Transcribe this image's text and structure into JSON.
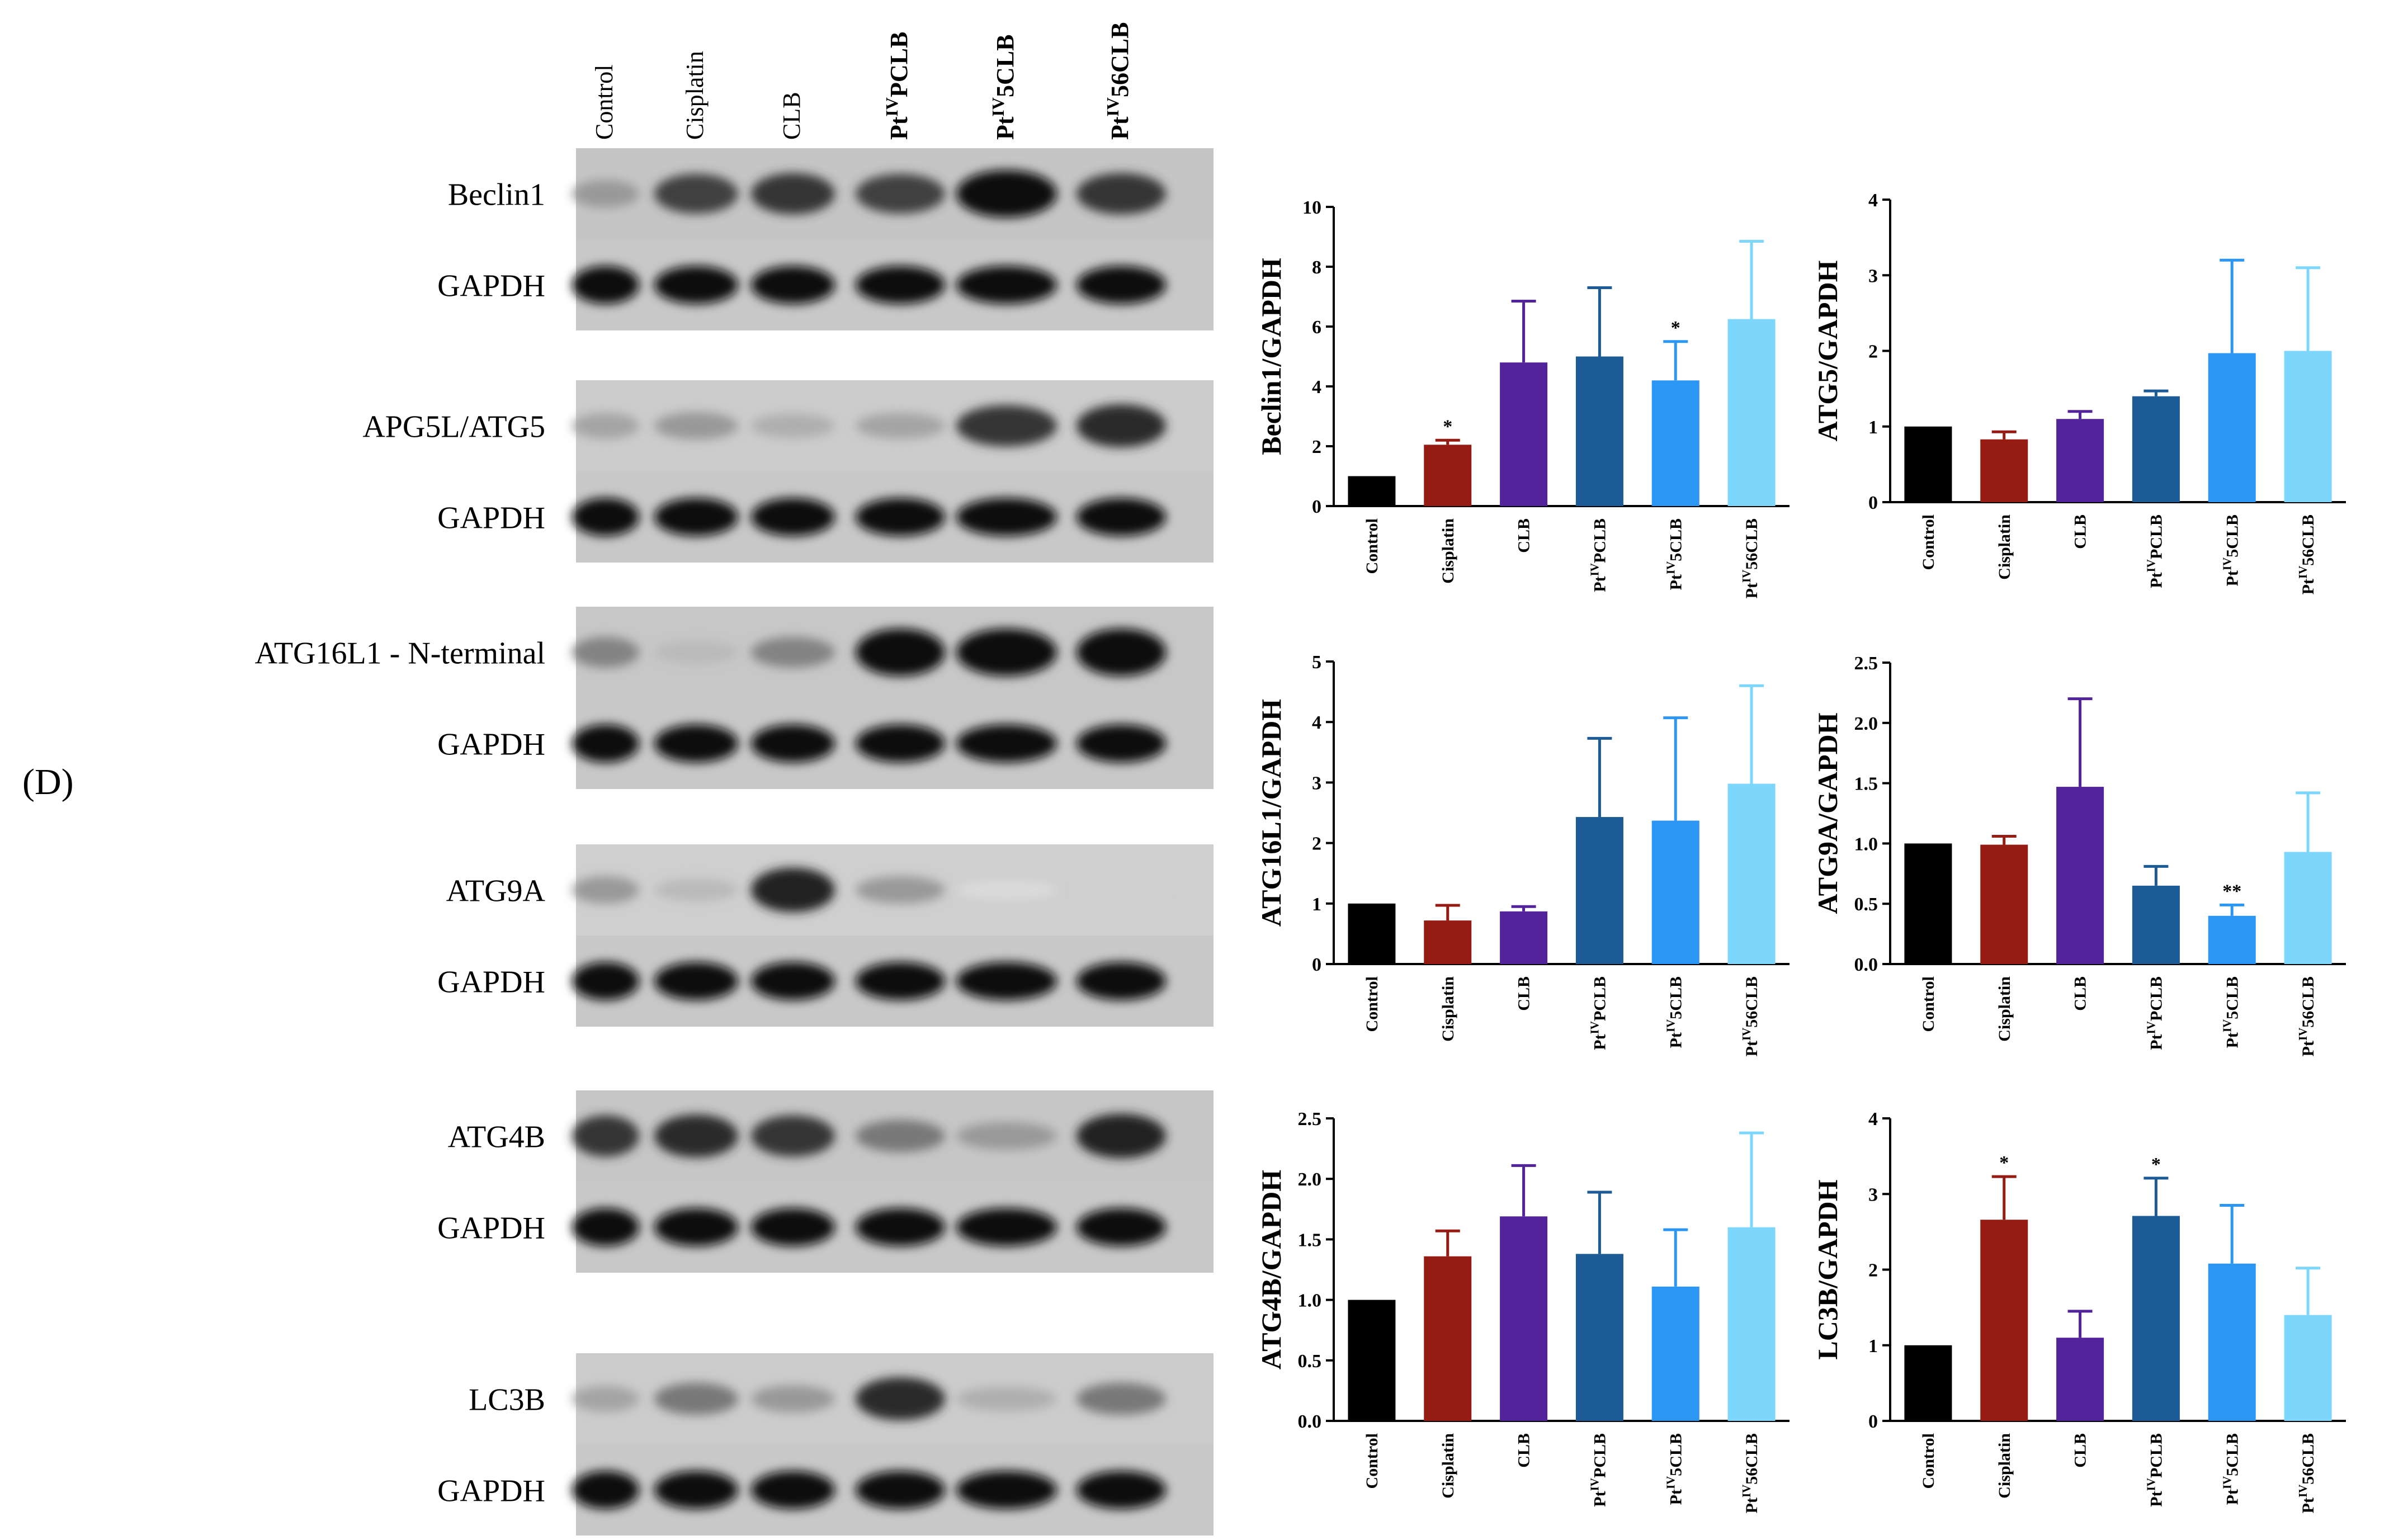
{
  "panel_label": "(D)",
  "lanes": [
    "Control",
    "Cisplatin",
    "CLB",
    "Pt<sup>IV</sup>PCLB",
    "Pt<sup>IV</sup>5CLB",
    "Pt<sup>IV</sup>56CLB"
  ],
  "lanes_plain": [
    "Control",
    "Cisplatin",
    "CLB",
    "PtIVPCLB",
    "PtIV5CLB",
    "PtIV56CLB"
  ],
  "blots": [
    {
      "name": "Beclin1",
      "loading": "GAPDH",
      "intensities": [
        0.35,
        0.75,
        0.8,
        0.75,
        1.0,
        0.8
      ]
    },
    {
      "name": "APG5L/ATG5",
      "loading": "GAPDH",
      "intensities": [
        0.3,
        0.35,
        0.25,
        0.3,
        0.8,
        0.85
      ]
    },
    {
      "name": "ATG16L1 - N-terminal",
      "loading": "GAPDH",
      "intensities": [
        0.45,
        0.2,
        0.45,
        1.0,
        1.0,
        1.0
      ]
    },
    {
      "name": "ATG9A",
      "loading": "GAPDH",
      "intensities": [
        0.35,
        0.2,
        0.9,
        0.35,
        0.05,
        0.1
      ]
    },
    {
      "name": "ATG4B",
      "loading": "GAPDH",
      "intensities": [
        0.8,
        0.85,
        0.8,
        0.5,
        0.35,
        0.9
      ]
    },
    {
      "name": "LC3B",
      "loading": "GAPDH",
      "intensities": [
        0.3,
        0.5,
        0.35,
        0.85,
        0.25,
        0.5
      ]
    }
  ],
  "bar_colors": [
    "#000000",
    "#951b13",
    "#53239b",
    "#1d5b96",
    "#2c96f4",
    "#7dd6fb"
  ],
  "chart_data": [
    {
      "type": "bar",
      "ylabel": "Beclin1/GAPDH",
      "categories": [
        "Control",
        "Cisplatin",
        "CLB",
        "PtIVPCLB",
        "PtIV5CLB",
        "PtIV56CLB"
      ],
      "values": [
        1.0,
        2.05,
        4.8,
        5.0,
        4.2,
        6.25
      ],
      "errors": [
        0.0,
        0.15,
        2.05,
        2.3,
        1.3,
        2.6
      ],
      "significance": [
        "",
        "*",
        "",
        "",
        "*",
        ""
      ],
      "ylim": [
        0,
        10
      ],
      "yticks": [
        "0",
        "2",
        "4",
        "6",
        "8",
        "10"
      ]
    },
    {
      "type": "bar",
      "ylabel": "ATG5/GAPDH",
      "categories": [
        "Control",
        "Cisplatin",
        "CLB",
        "PtIVPCLB",
        "PtIV5CLB",
        "PtIV56CLB"
      ],
      "values": [
        1.0,
        0.83,
        1.1,
        1.4,
        1.97,
        2.0
      ],
      "errors": [
        0.0,
        0.1,
        0.1,
        0.07,
        1.23,
        1.1
      ],
      "significance": [
        "",
        "",
        "",
        "",
        "",
        ""
      ],
      "ylim": [
        0,
        4
      ],
      "yticks": [
        "0",
        "1",
        "2",
        "3",
        "4"
      ]
    },
    {
      "type": "bar",
      "ylabel": "ATG16L1/GAPDH",
      "categories": [
        "Control",
        "Cisplatin",
        "CLB",
        "PtIVPCLB",
        "PtIV5CLB",
        "PtIV56CLB"
      ],
      "values": [
        1.0,
        0.72,
        0.87,
        2.43,
        2.37,
        2.98
      ],
      "errors": [
        0.0,
        0.25,
        0.08,
        1.3,
        1.7,
        1.62
      ],
      "significance": [
        "",
        "",
        "",
        "",
        "",
        ""
      ],
      "ylim": [
        0,
        5
      ],
      "yticks": [
        "0",
        "1",
        "2",
        "3",
        "4",
        "5"
      ]
    },
    {
      "type": "bar",
      "ylabel": "ATG9A/GAPDH",
      "categories": [
        "Control",
        "Cisplatin",
        "CLB",
        "PtIVPCLB",
        "PtIV5CLB",
        "PtIV56CLB"
      ],
      "values": [
        1.0,
        0.99,
        1.47,
        0.65,
        0.4,
        0.93
      ],
      "errors": [
        0.0,
        0.07,
        0.73,
        0.16,
        0.09,
        0.49
      ],
      "significance": [
        "",
        "",
        "",
        "",
        "**",
        ""
      ],
      "ylim": [
        0,
        2.5
      ],
      "yticks": [
        "0.0",
        "0.5",
        "1.0",
        "1.5",
        "2.0",
        "2.5"
      ]
    },
    {
      "type": "bar",
      "ylabel": "ATG4B/GAPDH",
      "categories": [
        "Control",
        "Cisplatin",
        "CLB",
        "PtIVPCLB",
        "PtIV5CLB",
        "PtIV56CLB"
      ],
      "values": [
        1.0,
        1.36,
        1.69,
        1.38,
        1.11,
        1.6
      ],
      "errors": [
        0.0,
        0.21,
        0.42,
        0.51,
        0.47,
        0.78
      ],
      "significance": [
        "",
        "",
        "",
        "",
        "",
        ""
      ],
      "ylim": [
        0,
        2.5
      ],
      "yticks": [
        "0.0",
        "0.5",
        "1.0",
        "1.5",
        "2.0",
        "2.5"
      ]
    },
    {
      "type": "bar",
      "ylabel": "LC3B/GAPDH",
      "categories": [
        "Control",
        "Cisplatin",
        "CLB",
        "PtIVPCLB",
        "PtIV5CLB",
        "PtIV56CLB"
      ],
      "values": [
        1.0,
        2.66,
        1.1,
        2.71,
        2.08,
        1.4
      ],
      "errors": [
        0.0,
        0.57,
        0.35,
        0.5,
        0.77,
        0.62
      ],
      "significance": [
        "",
        "*",
        "",
        "*",
        "",
        ""
      ],
      "ylim": [
        0,
        4
      ],
      "yticks": [
        "0",
        "1",
        "2",
        "3",
        "4"
      ]
    }
  ]
}
